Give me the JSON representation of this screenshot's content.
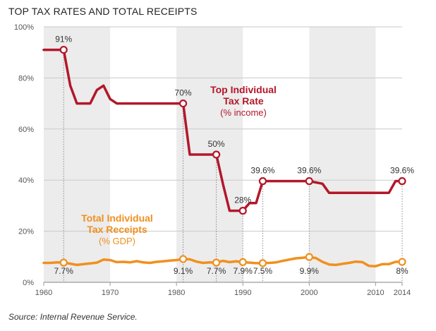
{
  "header": {
    "title": "TOP TAX RATES AND TOTAL RECEIPTS"
  },
  "footer": {
    "source": "Source: Internal Revenue Service."
  },
  "colors": {
    "tax_rate": "#b3172a",
    "receipts": "#f0901e",
    "band": "#ececec",
    "grid": "#c9c9c9",
    "drop_line": "#8a8a8a"
  },
  "chart_data": {
    "type": "line",
    "title": "TOP TAX RATES AND TOTAL RECEIPTS",
    "xlabel": "",
    "ylabel": "",
    "xlim": [
      1960,
      2014
    ],
    "ylim": [
      0,
      100
    ],
    "x_ticks": [
      1960,
      1970,
      1980,
      1990,
      2000,
      2010,
      2014
    ],
    "x_tick_labels": [
      "1960",
      "1970",
      "1980",
      "1990",
      "2000",
      "2010",
      "2014"
    ],
    "y_ticks": [
      0,
      20,
      40,
      60,
      80,
      100
    ],
    "y_tick_labels": [
      "0%",
      "20%",
      "40%",
      "60%",
      "80%",
      "100%"
    ],
    "grid": true,
    "shaded_decades": [
      [
        1960,
        1970
      ],
      [
        1980,
        1990
      ],
      [
        2000,
        2010
      ]
    ],
    "series": [
      {
        "key": "tax_rate",
        "name_lines": [
          "Top Individual",
          "Tax Rate",
          "(% income)"
        ],
        "color": "#b3172a",
        "points": [
          [
            1960,
            91
          ],
          [
            1963,
            91
          ],
          [
            1964,
            77
          ],
          [
            1965,
            70
          ],
          [
            1967,
            70
          ],
          [
            1968,
            75.25
          ],
          [
            1969,
            77
          ],
          [
            1970,
            71.75
          ],
          [
            1971,
            70
          ],
          [
            1981,
            70
          ],
          [
            1982,
            50
          ],
          [
            1986,
            50
          ],
          [
            1987,
            38.5
          ],
          [
            1988,
            28
          ],
          [
            1990,
            28
          ],
          [
            1991,
            31
          ],
          [
            1992,
            31
          ],
          [
            1993,
            39.6
          ],
          [
            2000,
            39.6
          ],
          [
            2002,
            38.6
          ],
          [
            2003,
            35
          ],
          [
            2012,
            35
          ],
          [
            2013,
            39.6
          ],
          [
            2014,
            39.6
          ]
        ],
        "markers": [
          {
            "x": 1963,
            "y": 91,
            "label": "91%"
          },
          {
            "x": 1981,
            "y": 70,
            "label": "70%"
          },
          {
            "x": 1986,
            "y": 50,
            "label": "50%"
          },
          {
            "x": 1990,
            "y": 28,
            "label": "28%"
          },
          {
            "x": 1993,
            "y": 39.6,
            "label": "39.6%"
          },
          {
            "x": 2000,
            "y": 39.6,
            "label": "39.6%"
          },
          {
            "x": 2014,
            "y": 39.6,
            "label": "39.6%"
          }
        ]
      },
      {
        "key": "receipts",
        "name_lines": [
          "Total Individual",
          "Tax Receipts",
          "(% GDP)"
        ],
        "color": "#f0901e",
        "points": [
          [
            1960,
            7.6
          ],
          [
            1961,
            7.6
          ],
          [
            1962,
            7.8
          ],
          [
            1963,
            7.7
          ],
          [
            1964,
            7.3
          ],
          [
            1965,
            6.8
          ],
          [
            1966,
            7.1
          ],
          [
            1967,
            7.4
          ],
          [
            1968,
            7.7
          ],
          [
            1969,
            8.9
          ],
          [
            1970,
            8.7
          ],
          [
            1971,
            7.9
          ],
          [
            1972,
            8.0
          ],
          [
            1973,
            7.8
          ],
          [
            1974,
            8.3
          ],
          [
            1975,
            7.8
          ],
          [
            1976,
            7.6
          ],
          [
            1977,
            8.0
          ],
          [
            1978,
            8.2
          ],
          [
            1979,
            8.5
          ],
          [
            1980,
            8.7
          ],
          [
            1981,
            9.1
          ],
          [
            1982,
            9.0
          ],
          [
            1983,
            8.1
          ],
          [
            1984,
            7.6
          ],
          [
            1985,
            7.8
          ],
          [
            1986,
            7.7
          ],
          [
            1987,
            8.4
          ],
          [
            1988,
            7.9
          ],
          [
            1989,
            8.2
          ],
          [
            1990,
            7.9
          ],
          [
            1991,
            7.7
          ],
          [
            1992,
            7.5
          ],
          [
            1993,
            7.5
          ],
          [
            1994,
            7.6
          ],
          [
            1995,
            7.8
          ],
          [
            1996,
            8.4
          ],
          [
            1997,
            8.9
          ],
          [
            1998,
            9.4
          ],
          [
            1999,
            9.6
          ],
          [
            2000,
            9.9
          ],
          [
            2001,
            9.5
          ],
          [
            2002,
            8.0
          ],
          [
            2003,
            7.0
          ],
          [
            2004,
            6.8
          ],
          [
            2005,
            7.2
          ],
          [
            2006,
            7.6
          ],
          [
            2007,
            8.1
          ],
          [
            2008,
            7.9
          ],
          [
            2009,
            6.4
          ],
          [
            2010,
            6.3
          ],
          [
            2011,
            7.1
          ],
          [
            2012,
            7.1
          ],
          [
            2013,
            8.0
          ],
          [
            2014,
            8.0
          ]
        ],
        "markers": [
          {
            "x": 1963,
            "y": 7.7,
            "label": "7.7%"
          },
          {
            "x": 1981,
            "y": 9.1,
            "label": "9.1%"
          },
          {
            "x": 1986,
            "y": 7.7,
            "label": "7.7%"
          },
          {
            "x": 1990,
            "y": 7.9,
            "label": "7.9%"
          },
          {
            "x": 1993,
            "y": 7.5,
            "label": "7.5%"
          },
          {
            "x": 2000,
            "y": 9.9,
            "label": "9.9%"
          },
          {
            "x": 2014,
            "y": 8.0,
            "label": "8%"
          }
        ]
      }
    ]
  }
}
